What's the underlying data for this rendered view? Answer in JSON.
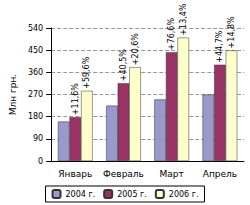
{
  "chart_data": {
    "type": "bar",
    "y_label": "Млн грн.",
    "categories": [
      "Январь",
      "Февраль",
      "Март",
      "Апрель"
    ],
    "series": [
      {
        "name": "2004 г.",
        "color": "#9999cc",
        "values": [
          160,
          225,
          250,
          270
        ]
      },
      {
        "name": "2005 г.",
        "color": "#993366",
        "values": [
          178,
          316,
          442,
          391
        ],
        "annotations": [
          "+11,6%",
          "+40,5%",
          "+76,6%",
          "+44,7%"
        ]
      },
      {
        "name": "2006 г.",
        "color": "#ffffcc",
        "values": [
          285,
          381,
          501,
          449
        ],
        "annotations": [
          "+59,6%",
          "+20,6%",
          "+13,4%",
          "+14,8%"
        ]
      }
    ],
    "ylim": [
      0,
      540
    ],
    "yticks": [
      0,
      90,
      180,
      270,
      360,
      450,
      540
    ],
    "grid": true,
    "legend": "bottom"
  }
}
